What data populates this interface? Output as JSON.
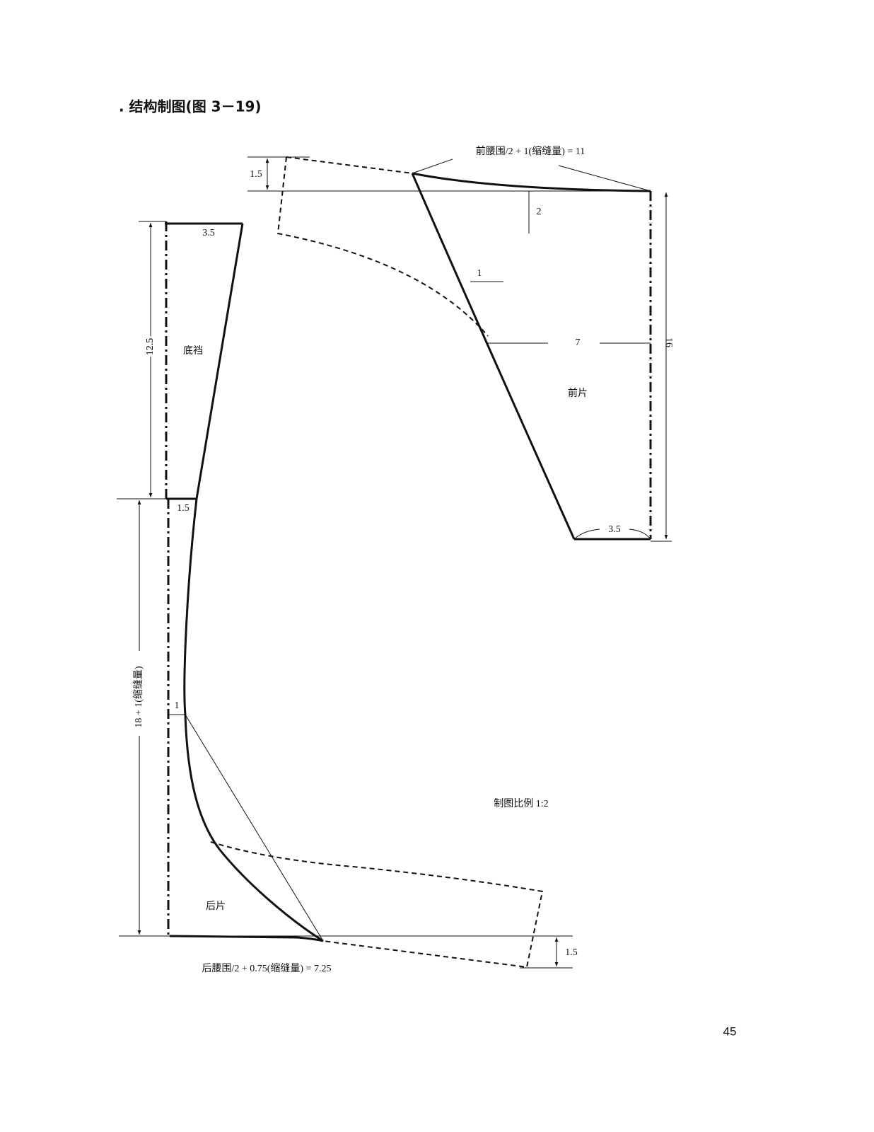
{
  "heading": ". 结构制图(图 3－19)",
  "front_piece": {
    "waist_label": "前腰围/2 + 1(缩缝量) = 11",
    "rise": "1.5",
    "drop": "2",
    "offset": "1",
    "depth": "7",
    "length": "16",
    "name": "前片",
    "hem": "3.5"
  },
  "gusset": {
    "top": "3.5",
    "length": "12.5",
    "name": "底裆",
    "bottom": "1.5"
  },
  "back_piece": {
    "length": "18 + 1(缩缝量)",
    "offset": "1",
    "name": "后片",
    "rise": "1.5",
    "waist_label": "后腰围/2 + 0.75(缩缝量) = 7.25"
  },
  "scale_note": "制图比例 1:2",
  "page_number": "45"
}
